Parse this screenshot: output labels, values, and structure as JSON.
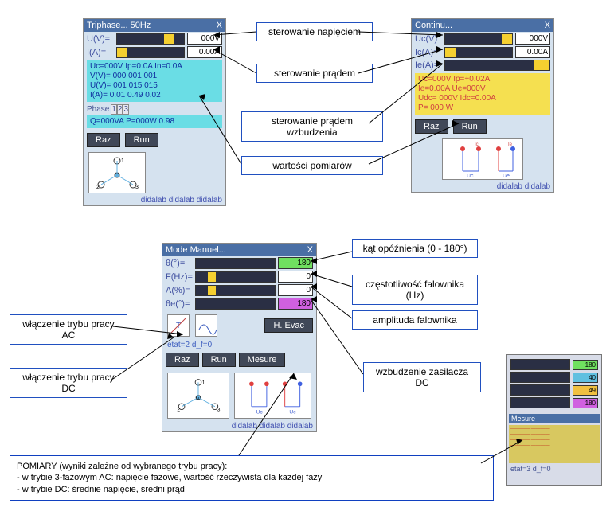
{
  "panel_tri": {
    "title": "Triphase...  50Hz",
    "rows": [
      {
        "label": "U(V)=",
        "segs": [
          [
            "#2a2f44",
            0.7
          ],
          [
            "#f5d030",
            0.15
          ],
          [
            "#2a2f44",
            0.15
          ]
        ],
        "val": "000V"
      },
      {
        "label": "I(A)=",
        "segs": [
          [
            "#f5d030",
            0.15
          ],
          [
            "#2a2f44",
            0.85
          ]
        ],
        "val": "0.00A"
      }
    ],
    "cyan_lines": [
      "Uc=000V Ip=0.0A In=0.0A",
      "V(V)= 000 001 001",
      "U(V)= 001 015 015",
      "I(A)= 0.01 0.49 0.02"
    ],
    "phase_label": "Phase",
    "phases": [
      "1",
      "2",
      "3"
    ],
    "bottom_cyan": "Q=000VA P=000W 0.98",
    "raz": "Raz",
    "run": "Run",
    "logo": "didalab   didalab   didalab"
  },
  "panel_cont": {
    "title": "Continu...",
    "rows": [
      {
        "label": "Uc(V)",
        "segs": [
          [
            "#2a2f44",
            0.85
          ],
          [
            "#f5d030",
            0.15
          ]
        ],
        "val": "000V"
      },
      {
        "label": "Ic(A)=",
        "segs": [
          [
            "#f5d030",
            0.15
          ],
          [
            "#2a2f44",
            0.85
          ]
        ],
        "val": "0.00A"
      },
      {
        "label": "Ie(A)=",
        "segs": [
          [
            "#2a2f44",
            0.85
          ],
          [
            "#f5d030",
            0.15
          ]
        ],
        "val": ""
      }
    ],
    "yellow_lines": [
      "Uc=000V Ip=+0.02A",
      "Ie=0.00A Ue=000V",
      "Udc= 000V Idc=0.00A",
      "P= 000 W"
    ],
    "raz": "Raz",
    "run": "Run",
    "logo": "didalab   didalab"
  },
  "panel_mode": {
    "title": "Mode Manuel...",
    "rows": [
      {
        "label": "θ(°)=",
        "segs": [
          [
            "#2a2f44",
            1
          ]
        ],
        "val": "180",
        "valbg": "#70e060"
      },
      {
        "label": "F(Hz)=",
        "segs": [
          [
            "#2a2f44",
            0.15
          ],
          [
            "#f5d030",
            0.1
          ],
          [
            "#2a2f44",
            0.75
          ]
        ],
        "val": "0",
        "valbg": "#fff"
      },
      {
        "label": "A(%)=",
        "segs": [
          [
            "#2a2f44",
            0.15
          ],
          [
            "#f5d030",
            0.1
          ],
          [
            "#2a2f44",
            0.75
          ]
        ],
        "val": "0",
        "valbg": "#fff"
      },
      {
        "label": "θe(°)=",
        "segs": [
          [
            "#2a2f44",
            1
          ]
        ],
        "val": "180",
        "valbg": "#d060e0"
      }
    ],
    "etat": "etat=2 d_f=0",
    "hevac": "H. Evac",
    "raz": "Raz",
    "run": "Run",
    "mesure": "Mesure",
    "logo": "didalab   didalab   didalab"
  },
  "thumb": {
    "rows": [
      {
        "segs": [
          [
            "#2a2f44",
            1
          ]
        ],
        "val": "180",
        "valbg": "#70e060"
      },
      {
        "segs": [
          [
            "#2a2f44",
            1
          ]
        ],
        "val": "40",
        "valbg": "#60c0e0"
      },
      {
        "segs": [
          [
            "#2a2f44",
            1
          ]
        ],
        "val": "49",
        "valbg": "#f0c040"
      },
      {
        "segs": [
          [
            "#2a2f44",
            1
          ]
        ],
        "val": "180",
        "valbg": "#d060e0"
      }
    ],
    "measure_title": "Mesure",
    "etat": "etat=3 d_f=0"
  },
  "annot": {
    "ster_nap": "sterowanie napięciem",
    "ster_prad": "sterowanie prądem",
    "ster_wzbu": "sterowanie prądem wzbudzenia",
    "wart_pom": "wartości pomiarów",
    "kat": "kąt opóźnienia (0 - 180°)",
    "czest": "częstotliwość falownika (Hz)",
    "amp": "amplituda falownika",
    "wzbudzenie": "wzbudzenie zasilacza DC",
    "tryb_ac": "włączenie trybu pracy AC",
    "tryb_dc": "włączenie trybu pracy DC"
  },
  "pomiary_title": "POMIARY (wyniki zależne od wybranego trybu pracy):",
  "pomiary_l1": "- w trybie 3-fazowym AC: napięcie fazowe, wartość rzeczywista dla każdej fazy",
  "pomiary_l2": "- w trybie DC: średnie napięcie, średni prąd"
}
